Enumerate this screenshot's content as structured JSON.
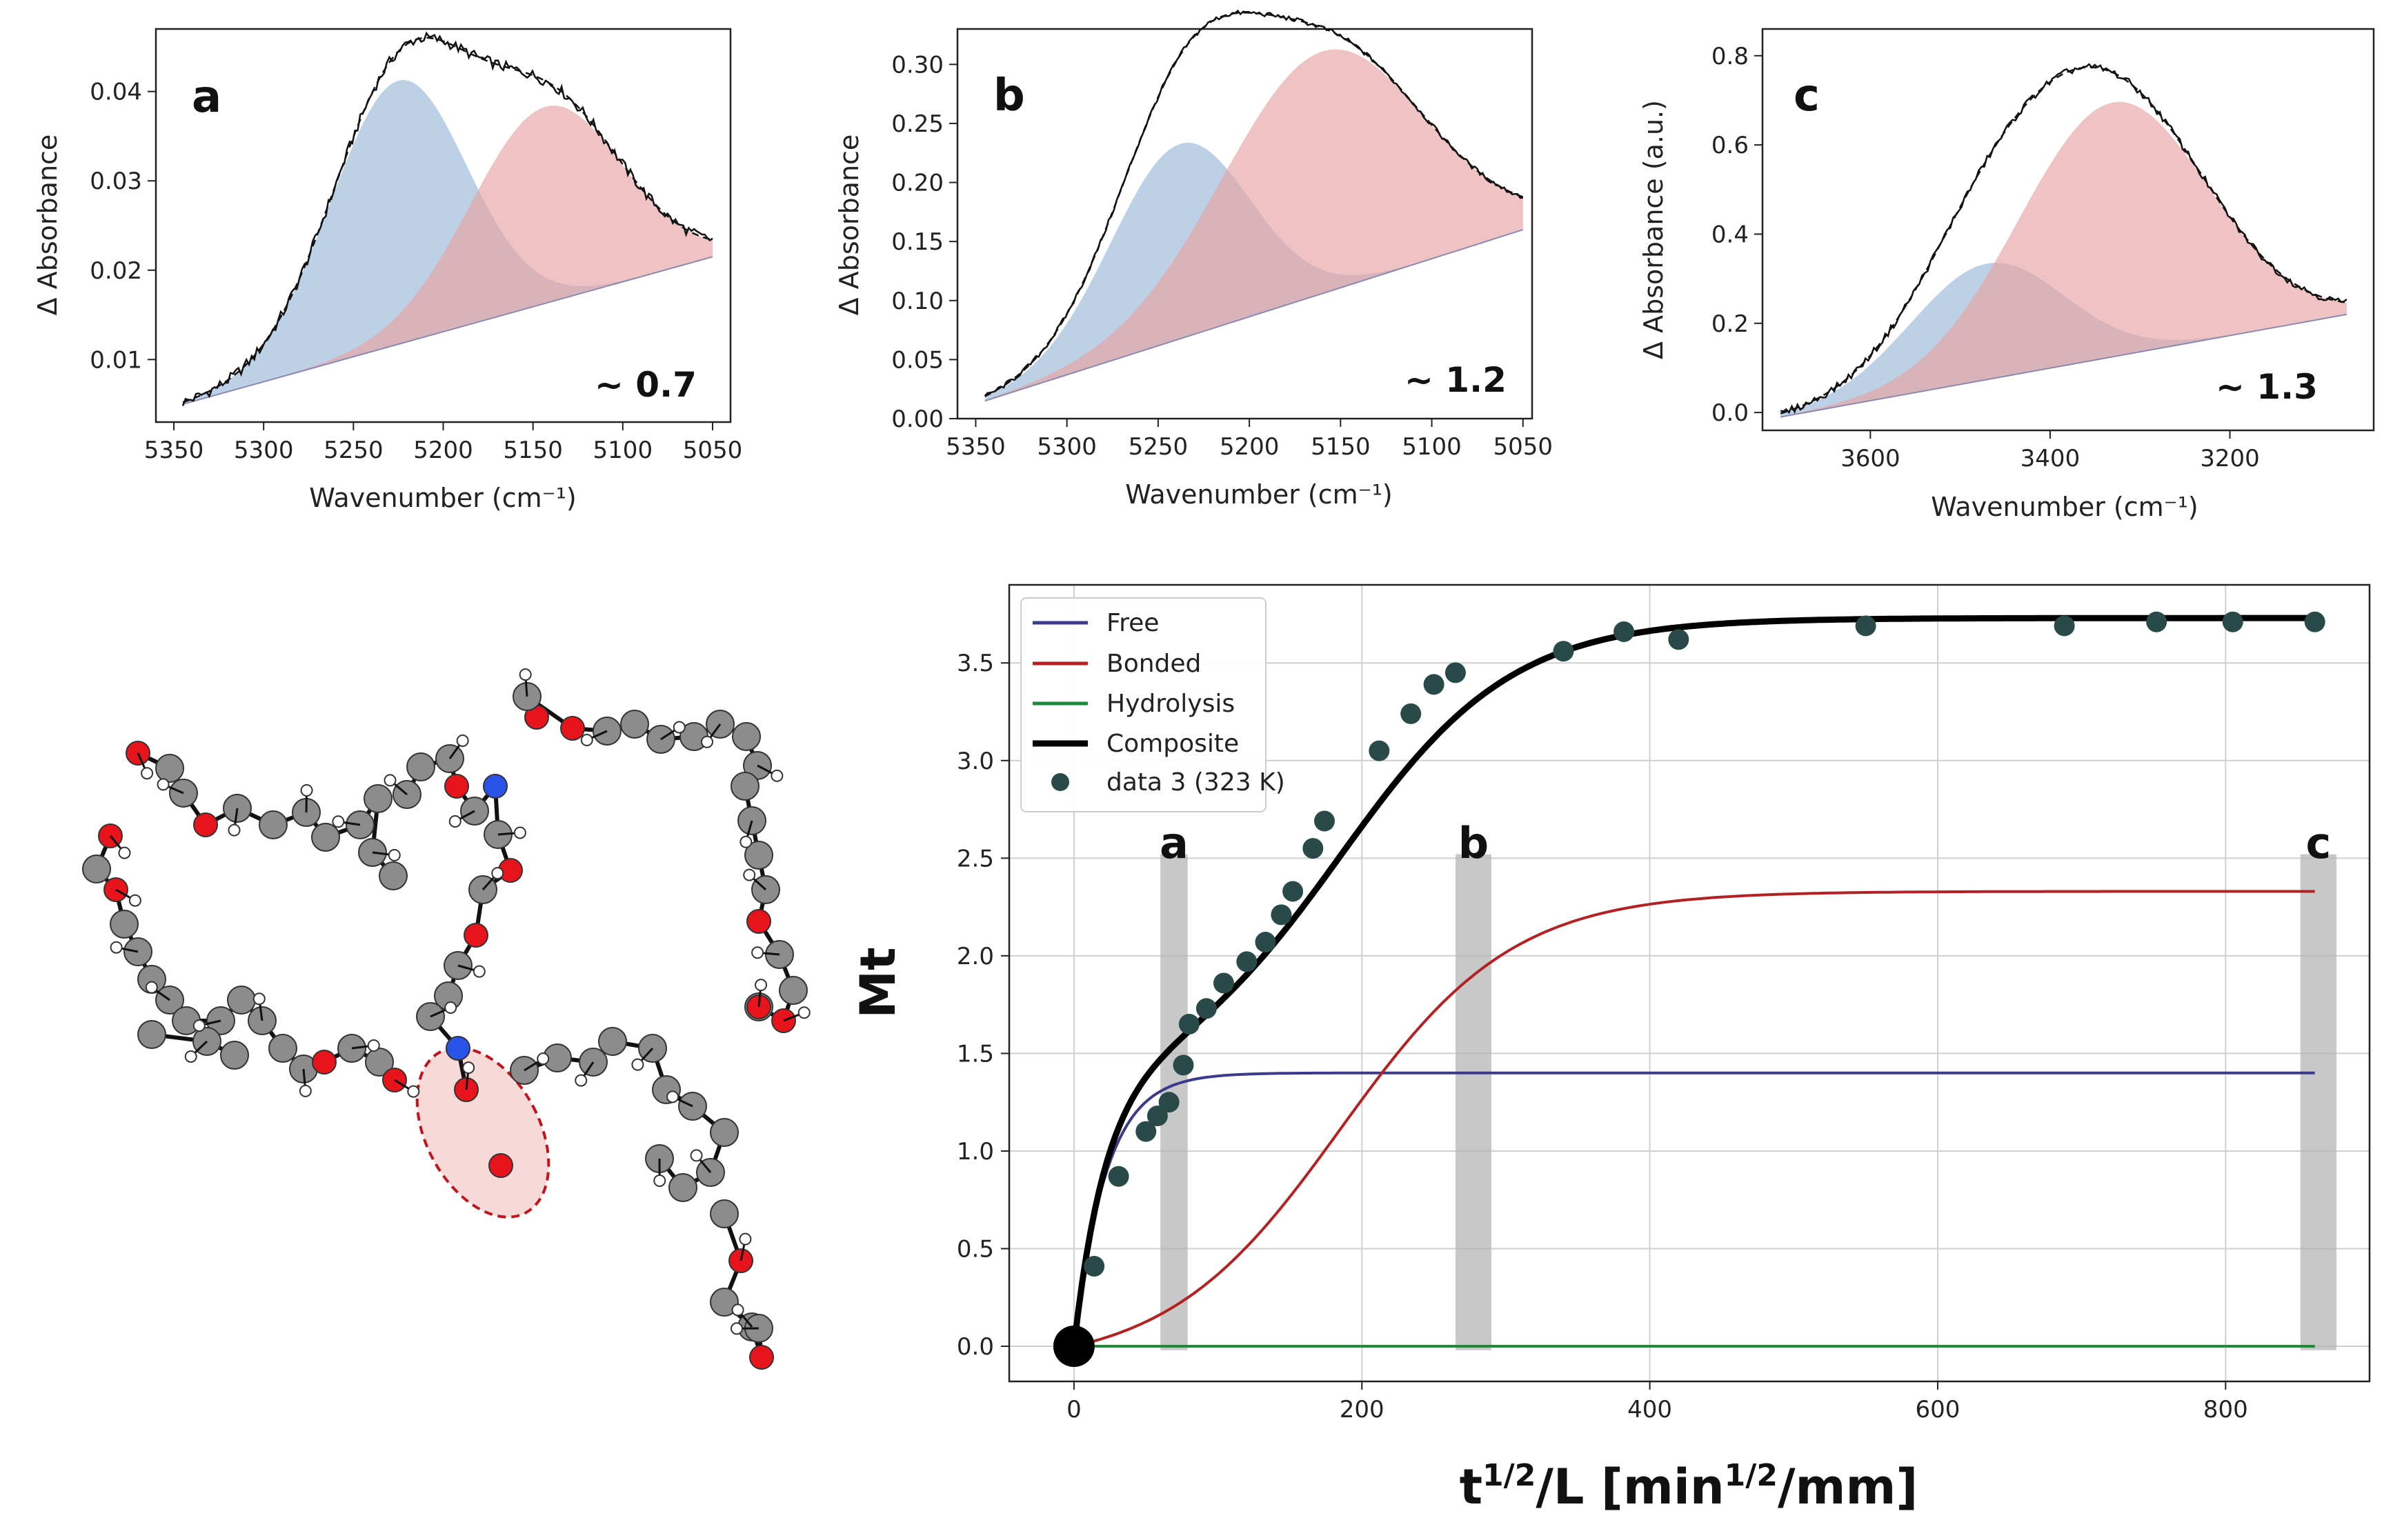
{
  "chart_data": [
    {
      "id": "a",
      "type": "line",
      "panel_label": "a",
      "ratio_label": "~ 0.7",
      "xlabel": "Wavenumber (cm⁻¹)",
      "ylabel": "Δ Absorbance",
      "xlim": [
        5360,
        5040
      ],
      "ylim": [
        0.003,
        0.047
      ],
      "xticks": [
        5350,
        5300,
        5250,
        5200,
        5150,
        5100,
        5050
      ],
      "yticks": [
        0.01,
        0.02,
        0.03,
        0.04
      ],
      "ytick_labels": [
        "0.01",
        "0.02",
        "0.03",
        "0.04"
      ],
      "baseline": {
        "x": [
          5345,
          5050
        ],
        "y": [
          0.005,
          0.0215
        ]
      },
      "gaussians": [
        {
          "name": "low-wavenumber band (blue)",
          "center": 5225,
          "amplitude": 0.0295,
          "sigma": 38,
          "color": "#9ab9d8"
        },
        {
          "name": "high-wavenumber band (red)",
          "center": 5143,
          "amplitude": 0.022,
          "sigma": 42,
          "color": "#e6a3a3"
        }
      ],
      "noise": 0.0006
    },
    {
      "id": "b",
      "type": "line",
      "panel_label": "b",
      "ratio_label": "~ 1.2",
      "xlabel": "Wavenumber (cm⁻¹)",
      "ylabel": "Δ Absorbance",
      "xlim": [
        5360,
        5045
      ],
      "ylim": [
        0.0,
        0.33
      ],
      "xticks": [
        5350,
        5300,
        5250,
        5200,
        5150,
        5100,
        5050
      ],
      "yticks": [
        0.0,
        0.05,
        0.1,
        0.15,
        0.2,
        0.25,
        0.3
      ],
      "ytick_labels": [
        "0.00",
        "0.05",
        "0.10",
        "0.15",
        "0.20",
        "0.25",
        "0.30"
      ],
      "baseline": {
        "x": [
          5345,
          5050
        ],
        "y": [
          0.015,
          0.16
        ]
      },
      "gaussians": [
        {
          "name": "low-wavenumber band (blue)",
          "center": 5238,
          "amplitude": 0.165,
          "sigma": 38,
          "color": "#9ab9d8"
        },
        {
          "name": "high-wavenumber band (red)",
          "center": 5160,
          "amplitude": 0.205,
          "sigma": 55,
          "color": "#e6a3a3"
        }
      ],
      "noise": 0.002
    },
    {
      "id": "c",
      "type": "line",
      "panel_label": "c",
      "ratio_label": "~ 1.3",
      "xlabel": "Wavenumber (cm⁻¹)",
      "ylabel": "Δ Absorbance (a.u.)",
      "xlim": [
        3720,
        3040
      ],
      "ylim": [
        -0.04,
        0.86
      ],
      "xticks": [
        3600,
        3400,
        3200
      ],
      "yticks": [
        0.0,
        0.2,
        0.4,
        0.6,
        0.8
      ],
      "ytick_labels": [
        "0.0",
        "0.2",
        "0.4",
        "0.6",
        "0.8"
      ],
      "baseline": {
        "x": [
          3700,
          3070
        ],
        "y": [
          -0.01,
          0.22
        ]
      },
      "gaussians": [
        {
          "name": "low-wavenumber band (blue)",
          "center": 3470,
          "amplitude": 0.26,
          "sigma": 85,
          "color": "#9ab9d8"
        },
        {
          "name": "high-wavenumber band (red)",
          "center": 3330,
          "amplitude": 0.57,
          "sigma": 105,
          "color": "#e6a3a3"
        }
      ],
      "noise": 0.008
    },
    {
      "id": "main",
      "type": "line",
      "xlabel": "t¹ᐟ²/L [min¹ᐟ²/mm]",
      "xlabel_parts": {
        "base": "t",
        "sup": "1/2",
        "mid": "/L [min",
        "sup2": "1/2",
        "tail": "/mm]"
      },
      "ylabel": "Mt",
      "xlim": [
        -45,
        900
      ],
      "ylim": [
        -0.18,
        3.9
      ],
      "xticks": [
        0,
        200,
        400,
        600,
        800
      ],
      "yticks": [
        0.0,
        0.5,
        1.0,
        1.5,
        2.0,
        2.5,
        3.0,
        3.5
      ],
      "ytick_labels": [
        "0.0",
        "0.5",
        "1.0",
        "1.5",
        "2.0",
        "2.5",
        "3.0",
        "3.5"
      ],
      "grid": true,
      "legend_location": "upper-left",
      "series": [
        {
          "name": "Free",
          "color": "#3b3a8c",
          "plateau": 1.4,
          "k": 0.045
        },
        {
          "name": "Bonded",
          "color": "#b22222",
          "plateau": 2.33,
          "midpoint": 185,
          "width": 60
        },
        {
          "name": "Hydrolysis",
          "color": "#1e8a3c",
          "plateau": 0.0
        },
        {
          "name": "Composite",
          "color": "#000000",
          "plateau": 3.73
        }
      ],
      "scatter": {
        "name": "data 3 (323 K)",
        "color": "#2a4a4a",
        "x": [
          0,
          14,
          31,
          50,
          58,
          66,
          76,
          80,
          92,
          104,
          120,
          133,
          144,
          152,
          166,
          174,
          212,
          234,
          250,
          265,
          340,
          382,
          420,
          550,
          688,
          752,
          805,
          862
        ],
        "y": [
          0.0,
          0.41,
          0.87,
          1.1,
          1.18,
          1.25,
          1.44,
          1.65,
          1.73,
          1.86,
          1.97,
          2.07,
          2.21,
          2.33,
          2.55,
          2.69,
          3.05,
          3.24,
          3.39,
          3.45,
          3.56,
          3.66,
          3.62,
          3.69,
          3.69,
          3.71,
          3.71,
          3.71
        ]
      },
      "bands": [
        {
          "label": "a",
          "x": [
            60,
            79
          ]
        },
        {
          "label": "b",
          "x": [
            265,
            290
          ]
        },
        {
          "label": "c",
          "x": [
            852,
            877
          ]
        }
      ]
    }
  ]
}
